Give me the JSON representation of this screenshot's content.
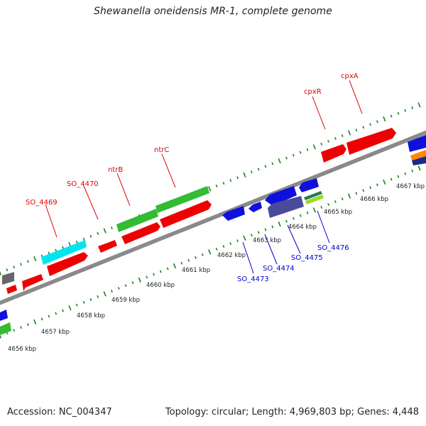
{
  "title": "Shewanella oneidensis MR-1, complete genome",
  "footer": {
    "accession": "Accession: NC_004347",
    "topology": "Topology: circular; Length: 4,969,803 bp; Genes: 4,448"
  },
  "colors": {
    "backbone": "#888888",
    "tick": "#1f7f1f",
    "forward_label": "#e00000",
    "reverse_label": "#0000cc",
    "cds": "#ff0000",
    "rna": "#1010dd",
    "green": "#33bb33",
    "cyan": "#00e5ee",
    "dark": "#4a4a9a"
  },
  "axis": {
    "unit": "kbp",
    "tick_labels": [
      "4656 kbp",
      "4657 kbp",
      "4658 kbp",
      "4659 kbp",
      "4660 kbp",
      "4661 kbp",
      "4662 kbp",
      "4663 kbp",
      "4664 kbp",
      "4665 kbp",
      "4666 kbp",
      "4667 kbp"
    ]
  },
  "forward_genes": [
    "SO_4469",
    "SO_4470",
    "ntrB",
    "ntrC",
    "cpxR",
    "cpxA"
  ],
  "reverse_genes": [
    "SO_4473",
    "SO_4474",
    "SO_4475",
    "SO_4476"
  ]
}
